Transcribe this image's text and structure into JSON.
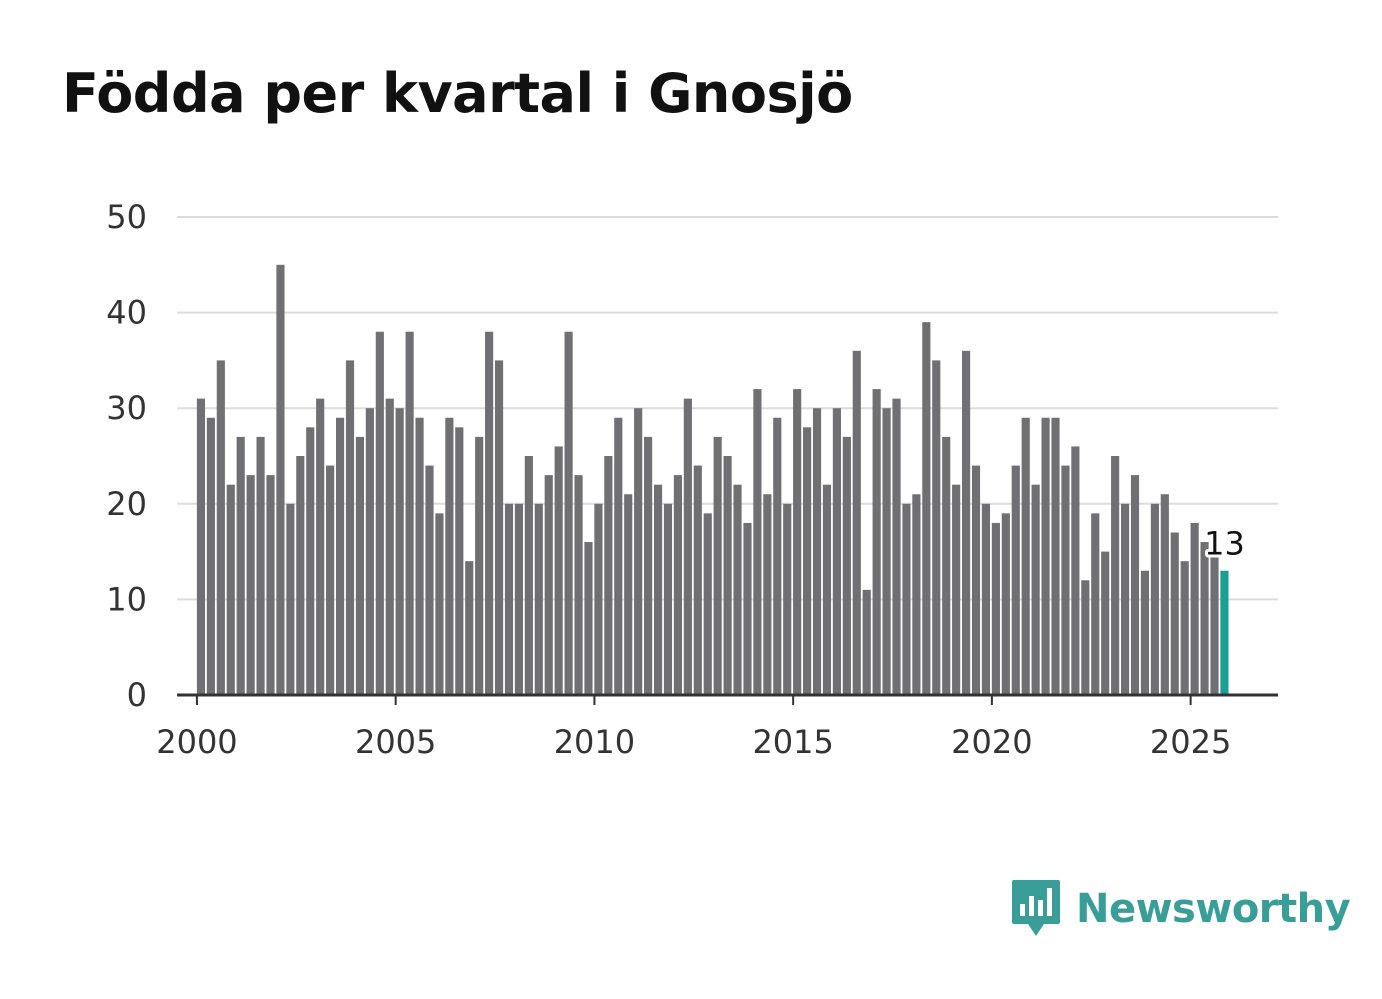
{
  "title": "Födda per kvartal i Gnosjö",
  "brand": {
    "name": "Newsworthy",
    "icon": "newsworthy-logo-icon"
  },
  "colors": {
    "bar": "#707074",
    "highlight": "#1a9e96",
    "grid": "#dddddd",
    "axis": "#333333",
    "brand": "#3a9e98"
  },
  "chart_data": {
    "type": "bar",
    "title": "Födda per kvartal i Gnosjö",
    "xlabel": "",
    "ylabel": "",
    "ylim": [
      0,
      50
    ],
    "xlim": [
      1999.5,
      2027.2
    ],
    "yticks": [
      "0",
      "10",
      "20",
      "30",
      "40",
      "50"
    ],
    "xticks": [
      "2000",
      "2005",
      "2010",
      "2015",
      "2020",
      "2025"
    ],
    "grid": true,
    "x_start": 2000.0,
    "x_step": 0.25,
    "values": [
      31,
      29,
      35,
      22,
      27,
      23,
      27,
      23,
      45,
      20,
      25,
      28,
      31,
      24,
      29,
      35,
      27,
      30,
      38,
      31,
      30,
      38,
      29,
      24,
      19,
      29,
      28,
      14,
      27,
      38,
      35,
      20,
      20,
      25,
      20,
      23,
      26,
      38,
      23,
      16,
      20,
      25,
      29,
      21,
      30,
      27,
      22,
      20,
      23,
      31,
      24,
      19,
      27,
      25,
      22,
      18,
      32,
      21,
      29,
      20,
      32,
      28,
      30,
      22,
      30,
      27,
      36,
      11,
      32,
      30,
      31,
      20,
      21,
      39,
      35,
      27,
      22,
      36,
      24,
      20,
      18,
      19,
      24,
      29,
      22,
      29,
      29,
      24,
      26,
      12,
      19,
      15,
      25,
      20,
      23,
      13,
      20,
      21,
      17,
      14,
      18,
      16,
      15,
      13
    ],
    "highlight_last": true,
    "annotation": "13"
  }
}
